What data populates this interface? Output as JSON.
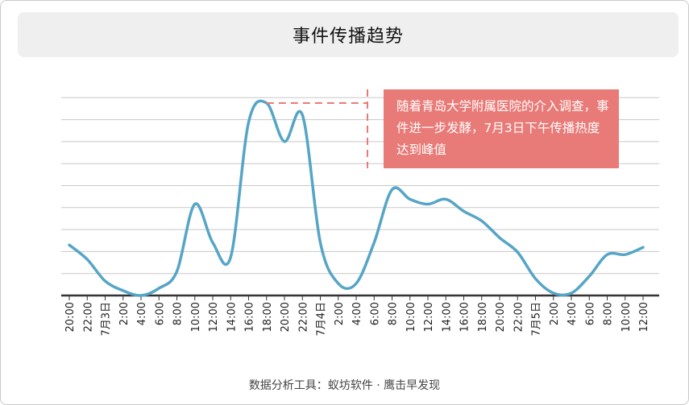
{
  "title": "事件传播趋势",
  "footer": "数据分析工具：蚁坊软件 · 鹰击早发现",
  "annotation": {
    "text": "随着青岛大学附属医院的介入调查，事件进一步发酵，7月3日下午传播热度达到峰值",
    "color": "#e87b78"
  },
  "chart_data": {
    "type": "line",
    "title": "事件传播趋势",
    "xlabel": "",
    "ylabel": "",
    "categories": [
      "20:00",
      "22:00",
      "7月3日",
      "2:00",
      "4:00",
      "6:00",
      "8:00",
      "10:00",
      "12:00",
      "14:00",
      "16:00",
      "18:00",
      "20:00",
      "22:00",
      "7月4日",
      "2:00",
      "4:00",
      "6:00",
      "8:00",
      "10:00",
      "12:00",
      "14:00",
      "16:00",
      "18:00",
      "20:00",
      "22:00",
      "7月5日",
      "2:00",
      "4:00",
      "6:00",
      "8:00",
      "10:00",
      "12:00"
    ],
    "values": [
      21,
      15,
      6,
      2,
      0,
      3,
      10,
      38,
      22,
      16,
      72,
      80,
      64,
      75,
      22,
      5,
      5,
      22,
      44,
      40,
      38,
      40,
      35,
      31,
      24,
      18,
      7,
      1,
      1,
      8,
      17,
      17,
      20
    ],
    "ylim": [
      0,
      82
    ],
    "y_gridlines": 8,
    "grid": true,
    "line_color": "#56a5c6",
    "legend": "none"
  }
}
